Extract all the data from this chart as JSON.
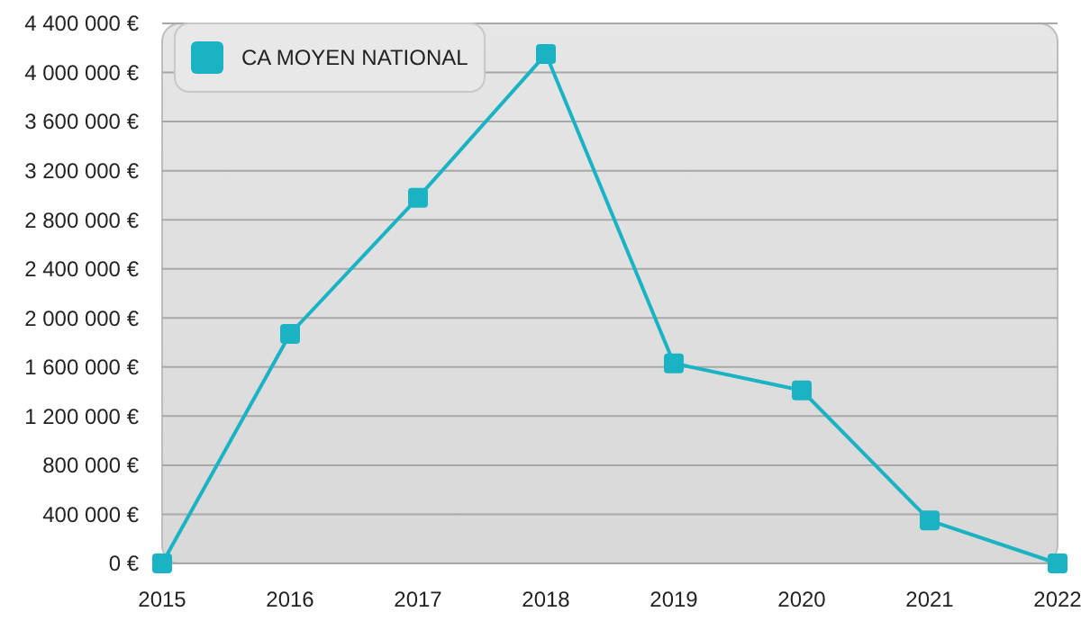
{
  "chart_data": {
    "type": "line",
    "x": [
      2015,
      2016,
      2017,
      2018,
      2019,
      2020,
      2021,
      2022
    ],
    "series": [
      {
        "name": "CA MOYEN NATIONAL",
        "color": "#1ab3c4",
        "values": [
          0,
          1870000,
          2980000,
          4150000,
          1630000,
          1410000,
          350000,
          0
        ]
      }
    ],
    "xlim": [
      2015,
      2022
    ],
    "xticks": [
      2015,
      2016,
      2017,
      2018,
      2019,
      2020,
      2021,
      2022
    ],
    "ylim": [
      0,
      4400000
    ],
    "yticks": [
      {
        "value": 0,
        "label": "0 €"
      },
      {
        "value": 400000,
        "label": "400 000 €"
      },
      {
        "value": 800000,
        "label": "800 000 €"
      },
      {
        "value": 1200000,
        "label": "1 200 000 €"
      },
      {
        "value": 1600000,
        "label": "1 600 000 €"
      },
      {
        "value": 2000000,
        "label": "2 000 000 €"
      },
      {
        "value": 2400000,
        "label": "2 400 000 €"
      },
      {
        "value": 2800000,
        "label": "2 800 000 €"
      },
      {
        "value": 3200000,
        "label": "3 200 000 €"
      },
      {
        "value": 3600000,
        "label": "3 600 000 €"
      },
      {
        "value": 4000000,
        "label": "4 000 000 €"
      },
      {
        "value": 4400000,
        "label": "4 400 000 €"
      }
    ],
    "grid": "y",
    "legend": "top left",
    "marker": "square",
    "line_style": "solid"
  }
}
